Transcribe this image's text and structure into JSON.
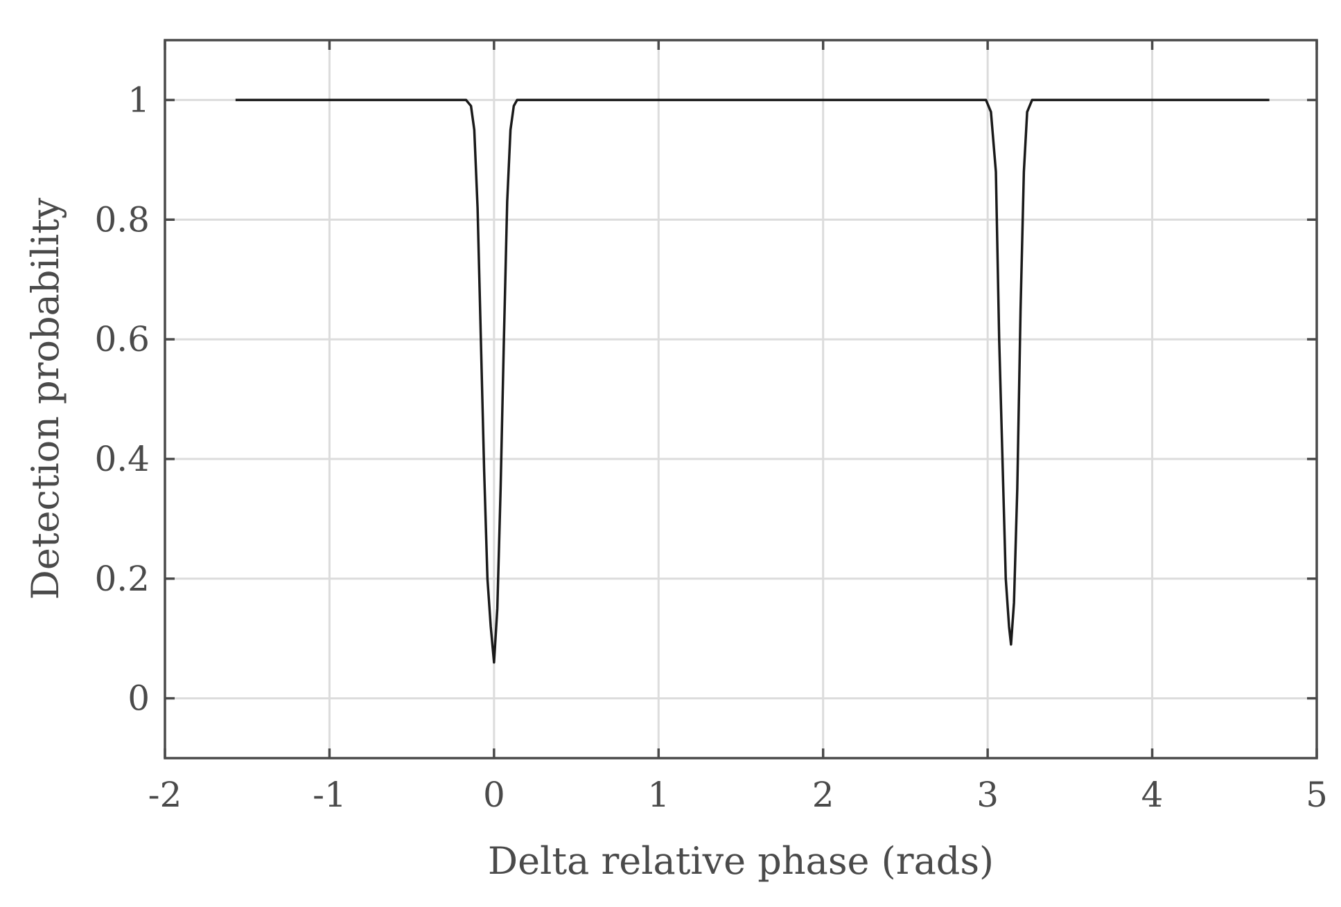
{
  "chart_data": {
    "type": "line",
    "title": "",
    "xlabel": "Delta relative phase (rads)",
    "ylabel": "Detection probability",
    "xlim": [
      -2,
      5
    ],
    "ylim": [
      -0.1,
      1.1
    ],
    "xticks": [
      -2,
      -1,
      0,
      1,
      2,
      3,
      4,
      5
    ],
    "xtick_labels": [
      "-2",
      "-1",
      "0",
      "1",
      "2",
      "3",
      "4",
      "5"
    ],
    "yticks": [
      0,
      0.2,
      0.4,
      0.6,
      0.8,
      1
    ],
    "ytick_labels": [
      "0",
      "0.2",
      "0.4",
      "0.6",
      "0.8",
      "1"
    ],
    "grid": true,
    "colors": {
      "line": "#1a1a1a",
      "axes": "#4a4a4a",
      "grid": "#dcdcdc"
    },
    "series": [
      {
        "x": [
          -1.571,
          -0.17,
          -0.14,
          -0.12,
          -0.1,
          -0.08,
          -0.06,
          -0.04,
          -0.02,
          0.0,
          0.02,
          0.04,
          0.06,
          0.08,
          0.1,
          0.12,
          0.14,
          0.17,
          0.5,
          1.0,
          1.5,
          2.0,
          2.5,
          2.99,
          3.02,
          3.05,
          3.07,
          3.09,
          3.11,
          3.13,
          3.142,
          3.16,
          3.18,
          3.2,
          3.22,
          3.24,
          3.27,
          3.5,
          4.0,
          4.712
        ],
        "y": [
          1.0,
          1.0,
          0.99,
          0.95,
          0.82,
          0.6,
          0.38,
          0.2,
          0.12,
          0.06,
          0.15,
          0.35,
          0.6,
          0.83,
          0.95,
          0.99,
          1.0,
          1.0,
          1.0,
          1.0,
          1.0,
          1.0,
          1.0,
          1.0,
          0.98,
          0.88,
          0.6,
          0.4,
          0.2,
          0.12,
          0.09,
          0.16,
          0.35,
          0.65,
          0.88,
          0.98,
          1.0,
          1.0,
          1.0,
          1.0
        ]
      }
    ]
  }
}
